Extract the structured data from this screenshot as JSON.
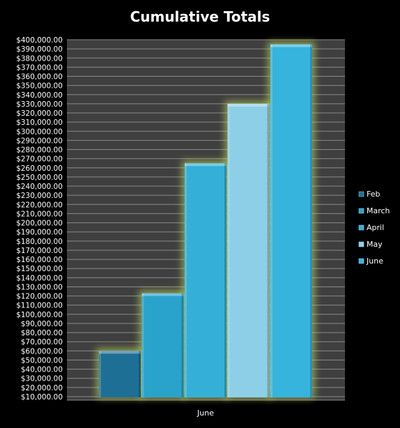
{
  "chart_data": {
    "type": "bar",
    "title": "Cumulative Totals",
    "categories": [
      "June"
    ],
    "series": [
      {
        "name": "Feb",
        "values": [
          60000
        ],
        "color": "#1e6f96"
      },
      {
        "name": "March",
        "values": [
          123000
        ],
        "color": "#2aa3cc"
      },
      {
        "name": "April",
        "values": [
          265000
        ],
        "color": "#34b0d8"
      },
      {
        "name": "May",
        "values": [
          330000
        ],
        "color": "#8ecfe8"
      },
      {
        "name": "June",
        "values": [
          395000
        ],
        "color": "#36b4de"
      }
    ],
    "y_ticks": [
      "$10,000.00",
      "$20,000.00",
      "$30,000.00",
      "$40,000.00",
      "$50,000.00",
      "$60,000.00",
      "$70,000.00",
      "$80,000.00",
      "$90,000.00",
      "$100,000.00",
      "$110,000.00",
      "$120,000.00",
      "$130,000.00",
      "$140,000.00",
      "$150,000.00",
      "$160,000.00",
      "$170,000.00",
      "$180,000.00",
      "$190,000.00",
      "$200,000.00",
      "$210,000.00",
      "$220,000.00",
      "$230,000.00",
      "$240,000.00",
      "$250,000.00",
      "$260,000.00",
      "$270,000.00",
      "$280,000.00",
      "$290,000.00",
      "$300,000.00",
      "$310,000.00",
      "$320,000.00",
      "$330,000.00",
      "$340,000.00",
      "$350,000.00",
      "$360,000.00",
      "$370,000.00",
      "$380,000.00",
      "$390,000.00",
      "$400,000.00"
    ],
    "ylim": [
      10000,
      400000
    ],
    "grid": true,
    "legend": "right",
    "colors": {
      "background": "#000000",
      "plot_area": "#3f3f3f",
      "gridline": "#8a8a8a",
      "glow": "#c8e65a"
    }
  }
}
